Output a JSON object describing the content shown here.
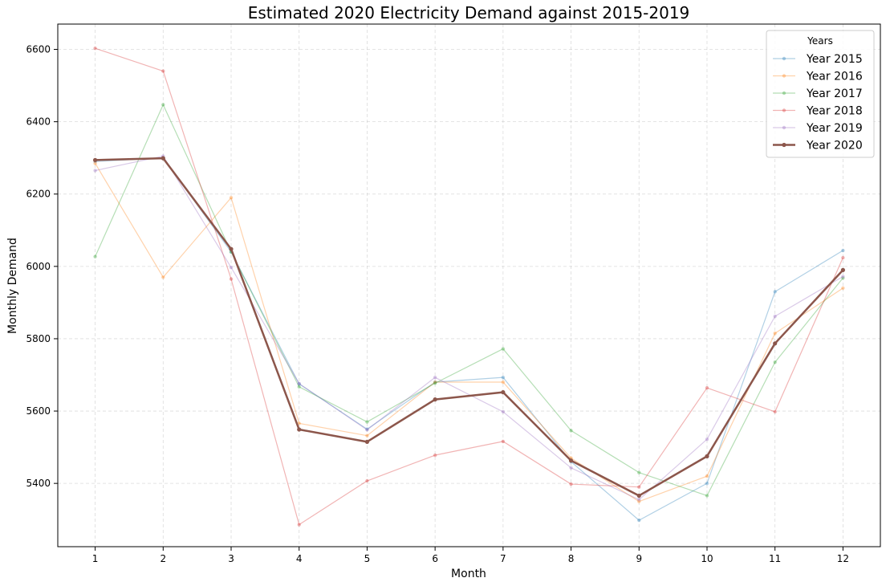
{
  "chart_data": {
    "type": "line",
    "title": "Estimated 2020 Electricity Demand against 2015-2019",
    "xlabel": "Month",
    "ylabel": "Monthly Demand",
    "x": [
      1,
      2,
      3,
      4,
      5,
      6,
      7,
      8,
      9,
      10,
      11,
      12
    ],
    "xticks": [
      "1",
      "2",
      "3",
      "4",
      "5",
      "6",
      "7",
      "8",
      "9",
      "10",
      "11",
      "12"
    ],
    "yticks": [
      "5400",
      "5600",
      "5800",
      "6000",
      "6200",
      "6400",
      "6600"
    ],
    "ylim": [
      5225,
      6670
    ],
    "grid": true,
    "legend": {
      "title": "Years",
      "placement": "top-right"
    },
    "series": [
      {
        "name": "Year 2015",
        "color": "#1f77b4",
        "highlight": false,
        "values": [
          6290,
          6300,
          6040,
          5675,
          5550,
          5680,
          5693,
          5460,
          5298,
          5400,
          5930,
          6044
        ]
      },
      {
        "name": "Year 2016",
        "color": "#ff7f0e",
        "highlight": false,
        "values": [
          6285,
          5970,
          6190,
          5566,
          5532,
          5680,
          5680,
          5470,
          5350,
          5420,
          5815,
          5940
        ]
      },
      {
        "name": "Year 2017",
        "color": "#2ca02c",
        "highlight": false,
        "values": [
          6027,
          6447,
          6040,
          5667,
          5570,
          5677,
          5772,
          5546,
          5430,
          5366,
          5735,
          5968
        ]
      },
      {
        "name": "Year 2018",
        "color": "#d62728",
        "highlight": false,
        "values": [
          6603,
          6540,
          5965,
          5286,
          5407,
          5478,
          5516,
          5398,
          5390,
          5664,
          5598,
          6024
        ]
      },
      {
        "name": "Year 2019",
        "color": "#9467bd",
        "highlight": false,
        "values": [
          6265,
          6305,
          5997,
          5676,
          5548,
          5693,
          5598,
          5443,
          5355,
          5522,
          5862,
          5972
        ]
      },
      {
        "name": "Year 2020",
        "color": "#8c564b",
        "highlight": true,
        "values": [
          6294,
          6299,
          6048,
          5549,
          5515,
          5632,
          5652,
          5463,
          5366,
          5475,
          5787,
          5990
        ]
      }
    ]
  }
}
